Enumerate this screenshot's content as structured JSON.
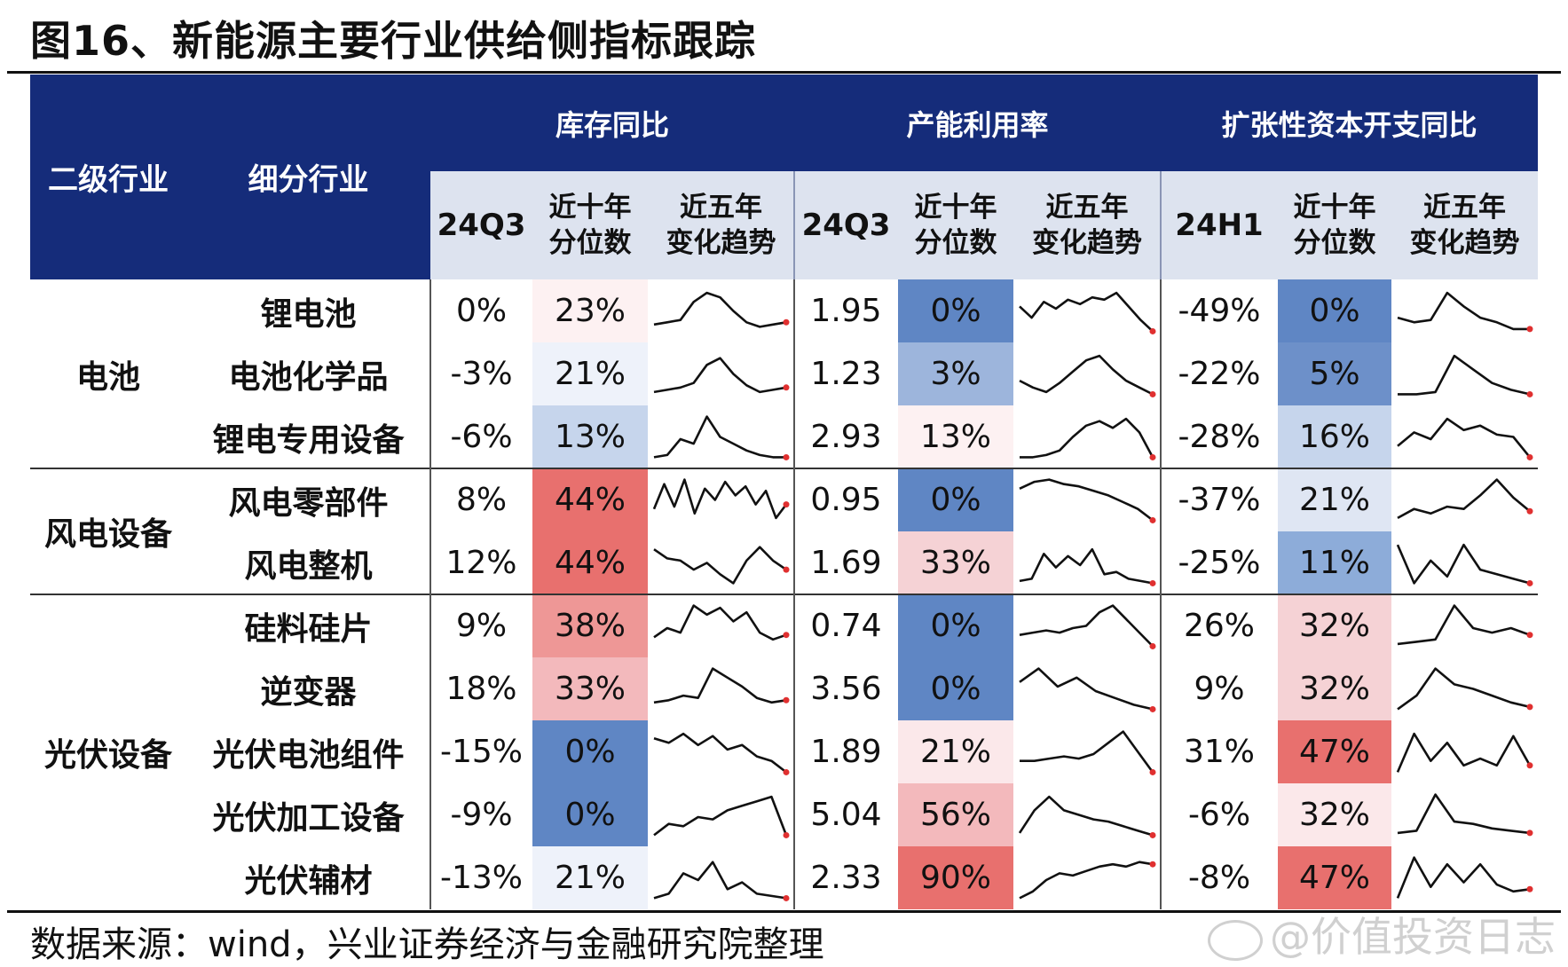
{
  "title": "图16、新能源主要行业供给侧指标跟踪",
  "source": "数据来源：wind，兴业证券经济与金融研究院整理",
  "watermark": "@价值投资日志",
  "header": {
    "level2": "二级行业",
    "sub_industry": "细分行业",
    "groups": [
      {
        "label": "库存同比",
        "period": "24Q3",
        "decile": "近十年\n分位数",
        "trend": "近五年\n变化趋势"
      },
      {
        "label": "产能利用率",
        "period": "24Q3",
        "decile": "近十年\n分位数",
        "trend": "近五年\n变化趋势"
      },
      {
        "label": "扩张性资本开支同比",
        "period": "24H1",
        "decile": "近十年\n分位数",
        "trend": "近五年\n变化趋势"
      }
    ]
  },
  "colors": {
    "header_bg": "#152c7a",
    "subheader_bg": "#dde3ef",
    "blue_strong": "#5f86c4",
    "red_strong": "#e8706e"
  },
  "groups": [
    {
      "name": "电池",
      "row_count": 3
    },
    {
      "name": "风电设备",
      "row_count": 2
    },
    {
      "name": "光伏设备",
      "row_count": 5
    }
  ],
  "rows": [
    {
      "name": "锂电池",
      "inv": {
        "value": "0%",
        "pct": "23%",
        "color": "#fdf1f2",
        "series": [
          0.2,
          0.25,
          0.3,
          0.7,
          0.9,
          0.8,
          0.5,
          0.25,
          0.15,
          0.2,
          0.25
        ]
      },
      "cap": {
        "value": "1.95",
        "pct": "0%",
        "color": "#5f86c4",
        "series": [
          0.6,
          0.35,
          0.7,
          0.55,
          0.75,
          0.65,
          0.8,
          0.75,
          0.9,
          0.6,
          0.3,
          0.05
        ]
      },
      "capex": {
        "value": "-49%",
        "pct": "0%",
        "color": "#5f86c4",
        "series": [
          0.35,
          0.25,
          0.3,
          0.9,
          0.6,
          0.35,
          0.25,
          0.1,
          0.1
        ]
      }
    },
    {
      "name": "电池化学品",
      "inv": {
        "value": "-3%",
        "pct": "21%",
        "color": "#eef2fa",
        "series": [
          0.1,
          0.15,
          0.2,
          0.3,
          0.7,
          0.85,
          0.5,
          0.25,
          0.1,
          0.15,
          0.2
        ]
      },
      "cap": {
        "value": "1.23",
        "pct": "3%",
        "color": "#9db5dc",
        "series": [
          0.35,
          0.2,
          0.1,
          0.3,
          0.55,
          0.8,
          0.9,
          0.6,
          0.35,
          0.2,
          0.05
        ]
      },
      "capex": {
        "value": "-22%",
        "pct": "5%",
        "color": "#6d90c9",
        "series": [
          0.05,
          0.05,
          0.1,
          0.9,
          0.6,
          0.3,
          0.15,
          0.05
        ]
      }
    },
    {
      "name": "锂电专用设备",
      "inv": {
        "value": "-6%",
        "pct": "13%",
        "color": "#c6d5ec",
        "series": [
          0.05,
          0.1,
          0.45,
          0.35,
          0.95,
          0.5,
          0.35,
          0.2,
          0.1,
          0.05,
          0.05
        ]
      },
      "cap": {
        "value": "2.93",
        "pct": "13%",
        "color": "#fdf1f2",
        "series": [
          0.05,
          0.05,
          0.1,
          0.2,
          0.5,
          0.75,
          0.85,
          0.7,
          0.9,
          0.6,
          0.05
        ]
      },
      "capex": {
        "value": "-28%",
        "pct": "16%",
        "color": "#c6d5ec",
        "series": [
          0.3,
          0.6,
          0.45,
          0.9,
          0.65,
          0.75,
          0.55,
          0.5,
          0.05
        ]
      }
    },
    {
      "name": "风电零部件",
      "inv": {
        "value": "8%",
        "pct": "44%",
        "color": "#e8706e",
        "series": [
          0.3,
          0.85,
          0.35,
          0.95,
          0.2,
          0.75,
          0.5,
          0.9,
          0.6,
          0.8,
          0.4,
          0.7,
          0.1,
          0.4
        ]
      },
      "cap": {
        "value": "0.95",
        "pct": "0%",
        "color": "#5f86c4",
        "series": [
          0.75,
          0.9,
          0.95,
          0.85,
          0.8,
          0.7,
          0.6,
          0.45,
          0.3,
          0.05
        ]
      },
      "capex": {
        "value": "-37%",
        "pct": "21%",
        "color": "#dfe6f3",
        "series": [
          0.1,
          0.3,
          0.2,
          0.35,
          0.3,
          0.6,
          0.95,
          0.55,
          0.25
        ]
      }
    },
    {
      "name": "风电整机",
      "inv": {
        "value": "12%",
        "pct": "44%",
        "color": "#e8706e",
        "series": [
          0.8,
          0.6,
          0.55,
          0.35,
          0.5,
          0.25,
          0.05,
          0.55,
          0.85,
          0.55,
          0.35
        ]
      },
      "cap": {
        "value": "1.69",
        "pct": "33%",
        "color": "#f5d2d5",
        "series": [
          0.1,
          0.15,
          0.7,
          0.4,
          0.65,
          0.45,
          0.8,
          0.25,
          0.3,
          0.15,
          0.1,
          0.05
        ]
      },
      "capex": {
        "value": "-25%",
        "pct": "11%",
        "color": "#8dacd9",
        "series": [
          0.9,
          0.05,
          0.55,
          0.2,
          0.9,
          0.35,
          0.25,
          0.15,
          0.05
        ]
      }
    },
    {
      "name": "硅料硅片",
      "inv": {
        "value": "9%",
        "pct": "38%",
        "color": "#ee9796",
        "series": [
          0.25,
          0.45,
          0.35,
          0.95,
          0.75,
          0.9,
          0.6,
          0.8,
          0.35,
          0.2,
          0.3
        ]
      },
      "cap": {
        "value": "0.74",
        "pct": "0%",
        "color": "#5f86c4",
        "series": [
          0.3,
          0.35,
          0.4,
          0.35,
          0.45,
          0.5,
          0.8,
          0.95,
          0.65,
          0.35,
          0.05
        ]
      },
      "capex": {
        "value": "26%",
        "pct": "32%",
        "color": "#f5d2d5",
        "series": [
          0.1,
          0.15,
          0.2,
          0.95,
          0.45,
          0.35,
          0.45,
          0.3
        ]
      }
    },
    {
      "name": "逆变器",
      "inv": {
        "value": "18%",
        "pct": "33%",
        "color": "#f3b9bc",
        "series": [
          0.2,
          0.25,
          0.35,
          0.3,
          0.95,
          0.75,
          0.55,
          0.3,
          0.2,
          0.25
        ]
      },
      "cap": {
        "value": "3.56",
        "pct": "0%",
        "color": "#5f86c4",
        "series": [
          0.65,
          0.95,
          0.55,
          0.75,
          0.45,
          0.3,
          0.15,
          0.05
        ]
      },
      "capex": {
        "value": "9%",
        "pct": "32%",
        "color": "#f5d2d5",
        "series": [
          0.05,
          0.35,
          0.95,
          0.6,
          0.5,
          0.35,
          0.2,
          0.1
        ]
      }
    },
    {
      "name": "光伏电池组件",
      "inv": {
        "value": "-15%",
        "pct": "0%",
        "color": "#5f86c4",
        "series": [
          0.8,
          0.7,
          0.9,
          0.65,
          0.85,
          0.55,
          0.65,
          0.4,
          0.3,
          0.05
        ]
      },
      "cap": {
        "value": "1.89",
        "pct": "21%",
        "color": "#fbe8ea",
        "series": [
          0.3,
          0.3,
          0.35,
          0.4,
          0.35,
          0.45,
          0.7,
          0.95,
          0.5,
          0.05
        ]
      },
      "capex": {
        "value": "31%",
        "pct": "47%",
        "color": "#e8706e",
        "series": [
          0.05,
          0.9,
          0.3,
          0.7,
          0.2,
          0.35,
          0.2,
          0.85,
          0.2
        ]
      }
    },
    {
      "name": "光伏加工设备",
      "inv": {
        "value": "-9%",
        "pct": "0%",
        "color": "#5f86c4",
        "series": [
          0.05,
          0.3,
          0.25,
          0.45,
          0.4,
          0.6,
          0.7,
          0.8,
          0.9,
          0.05
        ]
      },
      "cap": {
        "value": "5.04",
        "pct": "56%",
        "color": "#f3b9bc",
        "series": [
          0.1,
          0.6,
          0.9,
          0.6,
          0.5,
          0.4,
          0.35,
          0.25,
          0.15,
          0.05
        ]
      },
      "capex": {
        "value": "-6%",
        "pct": "32%",
        "color": "#fbe8ea",
        "series": [
          0.1,
          0.15,
          0.95,
          0.35,
          0.3,
          0.2,
          0.15,
          0.1
        ]
      }
    },
    {
      "name": "光伏辅材",
      "inv": {
        "value": "-13%",
        "pct": "21%",
        "color": "#eef2fa",
        "series": [
          0.05,
          0.15,
          0.6,
          0.45,
          0.85,
          0.25,
          0.4,
          0.15,
          0.1,
          0.05
        ]
      },
      "cap": {
        "value": "2.33",
        "pct": "90%",
        "color": "#e8706e",
        "series": [
          0.05,
          0.2,
          0.45,
          0.6,
          0.55,
          0.65,
          0.75,
          0.8,
          0.75,
          0.85,
          0.8
        ]
      },
      "capex": {
        "value": "-8%",
        "pct": "47%",
        "color": "#e8706e",
        "series": [
          0.05,
          0.95,
          0.3,
          0.8,
          0.4,
          0.8,
          0.35,
          0.2,
          0.25
        ]
      }
    }
  ]
}
